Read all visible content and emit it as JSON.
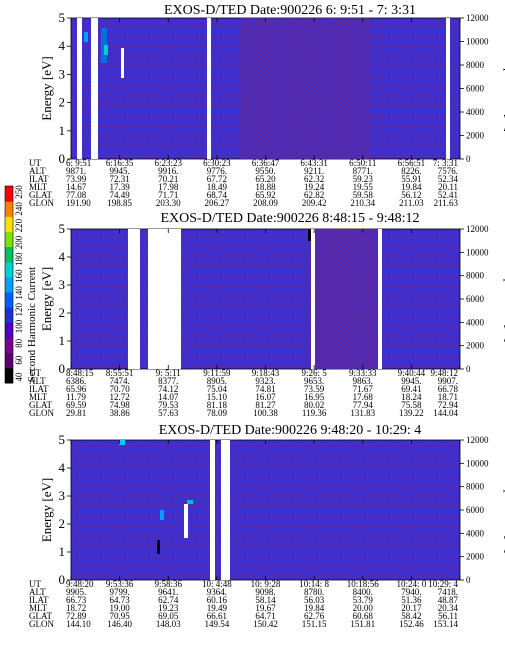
{
  "chart_data": [
    {
      "type": "heatmap",
      "title": "EXOS-D/TED   Date:900226  6: 9:51 - 7: 3:31",
      "ylabel_left": "Energy [eV]",
      "ylabel_right": "Temperature [K]",
      "ylim_left": [
        0,
        5
      ],
      "ylim_right": [
        0,
        12000
      ],
      "left_ticks": [
        "0",
        "1",
        "2",
        "3",
        "4",
        "5"
      ],
      "right_ticks": [
        "0",
        "2000",
        "4000",
        "6000",
        "8000",
        "10000",
        "12000"
      ],
      "row_labels": [
        "UT",
        "ALT",
        "ILAT",
        "MLT",
        "GLAT",
        "GLON"
      ],
      "columns": [
        [
          "6: 9:51",
          "9871.",
          "73.99",
          "14.67",
          "77.08",
          "191.90"
        ],
        [
          "6:16:35",
          "9945.",
          "72.31",
          "17.39",
          "74.49",
          "198.85"
        ],
        [
          "6:23:23",
          "9916.",
          "70.21",
          "17.98",
          "71.71",
          "203.30"
        ],
        [
          "6:30:23",
          "9776.",
          "67.72",
          "18.49",
          "68.74",
          "206.27"
        ],
        [
          "6:36:47",
          "9550.",
          "65.20",
          "18.88",
          "65.92",
          "208.09"
        ],
        [
          "6:43:31",
          "9211.",
          "62.32",
          "19.24",
          "62.82",
          "209.42"
        ],
        [
          "6:50:11",
          "8771.",
          "59.23",
          "19.55",
          "59.58",
          "210.34"
        ],
        [
          "6:56:51",
          "8226.",
          "55.91",
          "19.84",
          "56.12",
          "211.03"
        ],
        [
          "7: 3:31",
          "7576.",
          "52.34",
          "20.11",
          "52.41",
          "211.63"
        ]
      ]
    },
    {
      "type": "heatmap",
      "title": "EXOS-D/TED   Date:900226  8:48:15 - 9:48:12",
      "ylabel_left": "Energy [eV]",
      "ylabel_right": "Temperature [K]",
      "ylim_left": [
        0,
        5
      ],
      "ylim_right": [
        0,
        12000
      ],
      "left_ticks": [
        "0",
        "1",
        "2",
        "3",
        "4",
        "5"
      ],
      "right_ticks": [
        "0",
        "2000",
        "4000",
        "6000",
        "8000",
        "10000",
        "12000"
      ],
      "row_labels": [
        "UT",
        "ALT",
        "ILAT",
        "MLT",
        "GLAT",
        "GLON"
      ],
      "columns": [
        [
          "8:48:15",
          "6386.",
          "65.96",
          "11.79",
          "69.59",
          "29.81"
        ],
        [
          "8:55:51",
          "7474.",
          "70.70",
          "12.72",
          "74.98",
          "38.86"
        ],
        [
          "9: 5:11",
          "8377.",
          "74.12",
          "14.07",
          "79.53",
          "57.63"
        ],
        [
          "9:11:59",
          "8905.",
          "75.04",
          "15.10",
          "81.18",
          "78.09"
        ],
        [
          "9:18:43",
          "9323.",
          "74.81",
          "16.07",
          "81.27",
          "100.38"
        ],
        [
          "9:26: 5",
          "9653.",
          "73.59",
          "16.95",
          "80.02",
          "119.36"
        ],
        [
          "9:33:33",
          "9863.",
          "71.67",
          "17.68",
          "77.94",
          "131.83"
        ],
        [
          "9:40:44",
          "9945.",
          "69.41",
          "18.24",
          "75.58",
          "139.22"
        ],
        [
          "9:48:12",
          "9907.",
          "66.78",
          "18.71",
          "72.94",
          "144.04"
        ]
      ]
    },
    {
      "type": "heatmap",
      "title": "EXOS-D/TED   Date:900226  9:48:20 - 10:29: 4",
      "ylabel_left": "Energy [eV]",
      "ylabel_right": "Temperature [K]",
      "ylim_left": [
        0,
        5
      ],
      "ylim_right": [
        0,
        12000
      ],
      "left_ticks": [
        "0",
        "1",
        "2",
        "3",
        "4",
        "5"
      ],
      "right_ticks": [
        "0",
        "2000",
        "4000",
        "6000",
        "8000",
        "10000",
        "12000"
      ],
      "row_labels": [
        "UT",
        "ALT",
        "ILAT",
        "MLT",
        "GLAT",
        "GLON"
      ],
      "columns": [
        [
          "9:48:20",
          "9905.",
          "66.73",
          "18.72",
          "72.89",
          "144.10"
        ],
        [
          "9:53:36",
          "9799.",
          "64.73",
          "19.00",
          "70.95",
          "146.40"
        ],
        [
          "9:58:36",
          "9641.",
          "62.74",
          "19.23",
          "69.05",
          "148.03"
        ],
        [
          "10: 4:48",
          "9364.",
          "60.16",
          "19.49",
          "66.61",
          "149.54"
        ],
        [
          "10: 9:28",
          "9098.",
          "58.14",
          "19.67",
          "64.71",
          "150.42"
        ],
        [
          "10:14: 8",
          "8780.",
          "56.03",
          "19.84",
          "62.76",
          "151.15"
        ],
        [
          "10:18:56",
          "8400.",
          "53.79",
          "20.00",
          "60.68",
          "151.81"
        ],
        [
          "10:24: 0",
          "7940.",
          "51.36",
          "20.17",
          "58.42",
          "152.46"
        ],
        [
          "10:29: 4",
          "7418.",
          "48.87",
          "20.34",
          "56.11",
          "153.14"
        ]
      ]
    }
  ],
  "colorbar": {
    "label": "Second Harmonic Current",
    "ticks": [
      "40",
      "60",
      "80",
      "100",
      "120",
      "140",
      "160",
      "180",
      "200",
      "220",
      "240",
      "250"
    ],
    "colors": [
      "#000000",
      "#5a0070",
      "#7a0090",
      "#5000c0",
      "#2030d0",
      "#0060ff",
      "#00a0ff",
      "#00d0d0",
      "#00c060",
      "#80e000",
      "#ffe000",
      "#ff8000",
      "#ff0000"
    ]
  },
  "colors": {
    "background_field": "#3a2fd0",
    "speckle": "#6a1fa0",
    "hot": "#7a1a40"
  }
}
